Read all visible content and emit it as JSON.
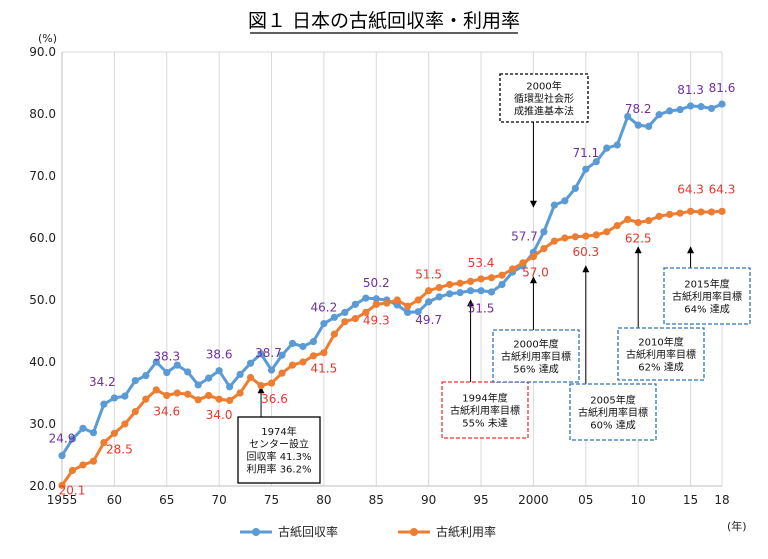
{
  "chart_data": {
    "type": "line",
    "title": "図１ 日本の古紙回収率・利用率",
    "y_unit": "(%)",
    "x_unit": "(年)",
    "ylim": [
      20.0,
      90.0
    ],
    "y_ticks": [
      "20.0",
      "30.0",
      "40.0",
      "50.0",
      "60.0",
      "70.0",
      "80.0",
      "90.0"
    ],
    "xlim": [
      1955,
      2018
    ],
    "x_tick_values": [
      1955,
      1960,
      1965,
      1970,
      1975,
      1980,
      1985,
      1990,
      1995,
      2000,
      2005,
      2010,
      2015,
      2018
    ],
    "x_tick_labels": [
      "1955",
      "60",
      "65",
      "70",
      "75",
      "80",
      "85",
      "90",
      "95",
      "2000",
      "05",
      "10",
      "15",
      "18"
    ],
    "grid": "vertical",
    "legend_position": "bottom",
    "colors": {
      "recovery": "#5b9bd5",
      "utilization": "#ed7d31",
      "recovery_label": "#7030a0",
      "utilization_label": "#e8372e",
      "red_box": "#e8372e",
      "blue_box": "#2e75b6"
    },
    "x": [
      1955,
      1956,
      1957,
      1958,
      1959,
      1960,
      1961,
      1962,
      1963,
      1964,
      1965,
      1966,
      1967,
      1968,
      1969,
      1970,
      1971,
      1972,
      1973,
      1974,
      1975,
      1976,
      1977,
      1978,
      1979,
      1980,
      1981,
      1982,
      1983,
      1984,
      1985,
      1986,
      1987,
      1988,
      1989,
      1990,
      1991,
      1992,
      1993,
      1994,
      1995,
      1996,
      1997,
      1998,
      1999,
      2000,
      2001,
      2002,
      2003,
      2004,
      2005,
      2006,
      2007,
      2008,
      2009,
      2010,
      2011,
      2012,
      2013,
      2014,
      2015,
      2016,
      2017,
      2018
    ],
    "series": [
      {
        "name": "古紙回収率",
        "values": [
          24.9,
          27.6,
          29.3,
          28.6,
          33.2,
          34.2,
          34.5,
          37.0,
          37.8,
          40.0,
          38.3,
          39.5,
          38.4,
          36.3,
          37.4,
          38.6,
          36.0,
          38.0,
          39.8,
          41.3,
          38.7,
          41.1,
          43.0,
          42.5,
          43.3,
          46.2,
          47.2,
          48.0,
          49.3,
          50.3,
          50.2,
          50.0,
          49.2,
          48.0,
          48.1,
          49.7,
          50.5,
          51.0,
          51.2,
          51.5,
          51.5,
          51.3,
          52.5,
          54.5,
          55.5,
          57.7,
          61.0,
          65.3,
          66.0,
          68.0,
          71.1,
          72.3,
          74.5,
          75.0,
          79.6,
          78.2,
          78.0,
          79.9,
          80.5,
          80.7,
          81.3,
          81.2,
          80.9,
          81.6
        ]
      },
      {
        "name": "古紙利用率",
        "values": [
          20.1,
          22.5,
          23.4,
          24.0,
          27.0,
          28.5,
          30.0,
          32.0,
          34.0,
          35.5,
          34.6,
          35.0,
          34.8,
          33.9,
          34.6,
          34.0,
          33.8,
          35.0,
          37.5,
          36.2,
          36.6,
          38.2,
          39.5,
          40.0,
          41.0,
          41.5,
          44.5,
          46.5,
          47.0,
          48.0,
          49.3,
          49.5,
          50.0,
          49.0,
          50.0,
          51.5,
          52.0,
          52.5,
          52.7,
          53.0,
          53.4,
          53.6,
          54.0,
          55.0,
          56.0,
          57.0,
          58.3,
          59.5,
          60.0,
          60.2,
          60.3,
          60.5,
          61.0,
          62.0,
          63.0,
          62.5,
          62.8,
          63.5,
          63.8,
          64.0,
          64.3,
          64.2,
          64.2,
          64.3
        ]
      }
    ],
    "data_labels": [
      {
        "series": 0,
        "x": 1955,
        "text": "24.9"
      },
      {
        "series": 0,
        "x": 1960,
        "text": "34.2"
      },
      {
        "series": 0,
        "x": 1965,
        "text": "38.3"
      },
      {
        "series": 0,
        "x": 1970,
        "text": "38.6"
      },
      {
        "series": 0,
        "x": 1975,
        "text": "38.7"
      },
      {
        "series": 0,
        "x": 1980,
        "text": "46.2"
      },
      {
        "series": 0,
        "x": 1985,
        "text": "50.2"
      },
      {
        "series": 0,
        "x": 1990,
        "text": "49.7"
      },
      {
        "series": 0,
        "x": 1995,
        "text": "51.5"
      },
      {
        "series": 0,
        "x": 2000,
        "text": "57.7"
      },
      {
        "series": 0,
        "x": 2005,
        "text": "71.1"
      },
      {
        "series": 0,
        "x": 2010,
        "text": "78.2"
      },
      {
        "series": 0,
        "x": 2015,
        "text": "81.3"
      },
      {
        "series": 0,
        "x": 2018,
        "text": "81.6"
      },
      {
        "series": 1,
        "x": 1955,
        "text": "20.1"
      },
      {
        "series": 1,
        "x": 1960,
        "text": "28.5"
      },
      {
        "series": 1,
        "x": 1965,
        "text": "34.6"
      },
      {
        "series": 1,
        "x": 1970,
        "text": "34.0"
      },
      {
        "series": 1,
        "x": 1975,
        "text": "36.6"
      },
      {
        "series": 1,
        "x": 1980,
        "text": "41.5"
      },
      {
        "series": 1,
        "x": 1985,
        "text": "49.3"
      },
      {
        "series": 1,
        "x": 1990,
        "text": "51.5"
      },
      {
        "series": 1,
        "x": 1995,
        "text": "53.4"
      },
      {
        "series": 1,
        "x": 2000,
        "text": "57.0"
      },
      {
        "series": 1,
        "x": 2005,
        "text": "60.3"
      },
      {
        "series": 1,
        "x": 2010,
        "text": "62.5"
      },
      {
        "series": 1,
        "x": 2015,
        "text": "64.3"
      },
      {
        "series": 1,
        "x": 2018,
        "text": "64.3"
      }
    ],
    "annotations": [
      {
        "id": "1974",
        "style": "black",
        "lines": [
          "1974年",
          "センター設立"
        ],
        "sub": [
          {
            "text": "回収率 41.3%",
            "color": "recovery_label"
          },
          {
            "text": "利用率 36.2%",
            "color": "utilization_label"
          }
        ]
      },
      {
        "id": "2000",
        "style": "black-dashed",
        "lines": [
          "2000年",
          "循環型社会形",
          "成推進基本法"
        ]
      },
      {
        "id": "1994",
        "style": "red-dashed",
        "lines": [
          "1994年度",
          "古紙利用率目標",
          "55% 未達"
        ]
      },
      {
        "id": "2000goal",
        "style": "blue-dashed",
        "lines": [
          "2000年度",
          "古紙利用率目標",
          "56% 達成"
        ]
      },
      {
        "id": "2005goal",
        "style": "blue-dashed",
        "lines": [
          "2005年度",
          "古紙利用率目標",
          "60% 達成"
        ]
      },
      {
        "id": "2010goal",
        "style": "blue-dashed",
        "lines": [
          "2010年度",
          "古紙利用率目標",
          "62% 達成"
        ]
      },
      {
        "id": "2015goal",
        "style": "blue-dashed",
        "lines": [
          "2015年度",
          "古紙利用率目標",
          "64% 達成"
        ]
      }
    ]
  }
}
